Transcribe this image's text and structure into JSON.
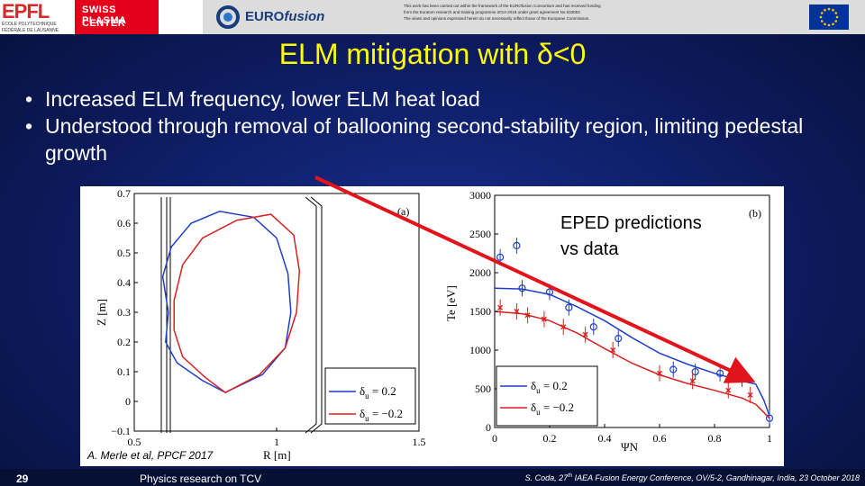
{
  "header": {
    "epfl": {
      "word": "EPFL",
      "line1": "ÉCOLE POLYTECHNIQUE",
      "line2": "FÉDÉRALE DE LAUSANNE"
    },
    "spc": {
      "line1": "SWISS PLASMA",
      "line2": "CENTER"
    },
    "eurofusion": {
      "prefix": "EURO",
      "suffix": "fusion"
    },
    "disclaimer": [
      "This work has been carried out within the framework of the EUROfusion Consortium and has received funding",
      "from the Euratom research and training programme 2014-2018 under grant agreement No 633053.",
      "The views and opinions expressed herein do not necessarily reflect those of the European Commission."
    ]
  },
  "title": "ELM mitigation with δ<0",
  "bullets": [
    "Increased ELM frequency, lower ELM heat load",
    "Understood through removal of ballooning second-stability region, limiting pedestal growth"
  ],
  "figure_note": {
    "line1": "EPED predictions",
    "line2": "vs data"
  },
  "citation": "A. Merle et al, PPCF 2017",
  "footer": {
    "page_number": "29",
    "center": "Physics research on TCV",
    "right_prefix": "S. Coda, 27",
    "right_sup": "th",
    "right_suffix": " IAEA Fusion Energy Conference, OV/5-2, Gandhinagar, India, 23 October 2018"
  },
  "colors": {
    "accent_title": "#ffff00",
    "arrow": "#e3131b",
    "series_pos": "#1f3fc8",
    "series_neg": "#d82020"
  },
  "chart_data": [
    {
      "type": "line",
      "panel": "(a)",
      "xlabel": "R [m]",
      "ylabel": "Z [m]",
      "xlim": [
        0.5,
        1.5
      ],
      "ylim": [
        -0.1,
        0.7
      ],
      "xticks": [
        "0.5",
        "1",
        "1.5"
      ],
      "yticks": [
        "−0.1",
        "0",
        "0.1",
        "0.2",
        "0.3",
        "0.4",
        "0.5",
        "0.6",
        "0.7"
      ],
      "legend": [
        {
          "symbol": "δ",
          "sub": "u",
          "label": " = 0.2"
        },
        {
          "symbol": "δ",
          "sub": "u",
          "label": " = −0.2"
        }
      ],
      "series": [
        {
          "name": "δu = 0.2",
          "color": "#1f3fc8",
          "points": [
            [
              0.82,
              0.03
            ],
            [
              0.74,
              0.07
            ],
            [
              0.65,
              0.13
            ],
            [
              0.61,
              0.2
            ],
            [
              0.62,
              0.3
            ],
            [
              0.6,
              0.42
            ],
            [
              0.63,
              0.52
            ],
            [
              0.7,
              0.6
            ],
            [
              0.8,
              0.64
            ],
            [
              0.92,
              0.62
            ],
            [
              1.0,
              0.55
            ],
            [
              1.04,
              0.43
            ],
            [
              1.05,
              0.3
            ],
            [
              1.03,
              0.18
            ],
            [
              0.95,
              0.09
            ],
            [
              0.82,
              0.03
            ]
          ]
        },
        {
          "name": "δu = −0.2",
          "color": "#d82020",
          "points": [
            [
              0.82,
              0.03
            ],
            [
              0.75,
              0.08
            ],
            [
              0.67,
              0.15
            ],
            [
              0.64,
              0.24
            ],
            [
              0.64,
              0.34
            ],
            [
              0.67,
              0.46
            ],
            [
              0.74,
              0.55
            ],
            [
              0.86,
              0.61
            ],
            [
              0.98,
              0.63
            ],
            [
              1.06,
              0.56
            ],
            [
              1.08,
              0.44
            ],
            [
              1.07,
              0.3
            ],
            [
              1.03,
              0.18
            ],
            [
              0.94,
              0.09
            ],
            [
              0.82,
              0.03
            ]
          ]
        }
      ]
    },
    {
      "type": "line",
      "panel": "(b)",
      "xlabel": "ΨN",
      "ylabel": "Te [eV]",
      "xlim": [
        0,
        1
      ],
      "ylim": [
        0,
        3000
      ],
      "xticks": [
        "0",
        "0.2",
        "0.4",
        "0.6",
        "0.8",
        "1"
      ],
      "yticks": [
        "0",
        "500",
        "1000",
        "1500",
        "2000",
        "2500",
        "3000"
      ],
      "legend": [
        {
          "symbol": "δ",
          "sub": "u",
          "label": " = 0.2"
        },
        {
          "symbol": "δ",
          "sub": "u",
          "label": " = −0.2"
        }
      ],
      "series": [
        {
          "name": "δu = 0.2 fit",
          "color": "#1f3fc8",
          "x": [
            0,
            0.1,
            0.2,
            0.3,
            0.4,
            0.5,
            0.6,
            0.7,
            0.8,
            0.9,
            0.95,
            0.98,
            1.0
          ],
          "y": [
            1800,
            1790,
            1720,
            1560,
            1380,
            1160,
            960,
            820,
            700,
            600,
            560,
            350,
            150
          ]
        },
        {
          "name": "δu = 0.2 data",
          "color": "#1f3fc8",
          "x": [
            0.02,
            0.08,
            0.1,
            0.2,
            0.27,
            0.36,
            0.45,
            0.65,
            0.73,
            0.82,
            0.9,
            1.0
          ],
          "y": [
            2200,
            2350,
            1800,
            1750,
            1550,
            1300,
            1150,
            750,
            720,
            700,
            630,
            120
          ]
        },
        {
          "name": "δu = −0.2 fit",
          "color": "#d82020",
          "x": [
            0,
            0.1,
            0.2,
            0.3,
            0.4,
            0.5,
            0.6,
            0.7,
            0.8,
            0.9,
            0.95,
            1.0
          ],
          "y": [
            1500,
            1470,
            1380,
            1220,
            1020,
            830,
            680,
            570,
            480,
            380,
            300,
            120
          ]
        },
        {
          "name": "δu = −0.2 data",
          "color": "#d82020",
          "x": [
            0.02,
            0.08,
            0.12,
            0.18,
            0.25,
            0.33,
            0.43,
            0.6,
            0.72,
            0.85,
            0.93
          ],
          "y": [
            1550,
            1500,
            1450,
            1400,
            1300,
            1200,
            1000,
            700,
            600,
            480,
            420
          ]
        }
      ]
    }
  ]
}
